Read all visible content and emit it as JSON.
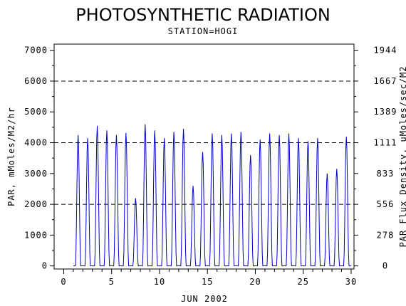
{
  "chart_data": {
    "type": "line",
    "title": "PHOTOSYNTHETIC RADIATION",
    "subtitle": "STATION=HOGI",
    "xlabel": "JUN 2002",
    "ylabel": "PAR, mMoles/M2/hr",
    "y2label": "PAR Flux Density, uMoles/sec/M2",
    "xlim": [
      -1,
      30.3
    ],
    "ylim": [
      -100,
      7200
    ],
    "x_ticks": [
      "0",
      "5",
      "10",
      "15",
      "20",
      "25",
      "30"
    ],
    "y_ticks": [
      "0",
      "1000",
      "2000",
      "3000",
      "4000",
      "5000",
      "6000",
      "7000"
    ],
    "y2_ticks": [
      "0",
      "278",
      "556",
      "833",
      "1111",
      "1389",
      "1667",
      "1944"
    ],
    "grid_y": [
      2000,
      4000,
      6000
    ],
    "line_color": "#0000cc",
    "series": [
      {
        "daily_peaks": [
          {
            "x": 1.5,
            "y": 4250
          },
          {
            "x": 2.5,
            "y": 4150
          },
          {
            "x": 3.5,
            "y": 4550
          },
          {
            "x": 4.5,
            "y": 4400
          },
          {
            "x": 5.5,
            "y": 4250
          },
          {
            "x": 6.5,
            "y": 4320
          },
          {
            "x": 7.5,
            "y": 2200
          },
          {
            "x": 8.5,
            "y": 4600
          },
          {
            "x": 9.5,
            "y": 4400
          },
          {
            "x": 10.5,
            "y": 4150
          },
          {
            "x": 11.5,
            "y": 4350
          },
          {
            "x": 12.5,
            "y": 4450
          },
          {
            "x": 13.5,
            "y": 2600
          },
          {
            "x": 14.5,
            "y": 3700
          },
          {
            "x": 15.5,
            "y": 4300
          },
          {
            "x": 16.5,
            "y": 4250
          },
          {
            "x": 17.5,
            "y": 4300
          },
          {
            "x": 18.5,
            "y": 4350
          },
          {
            "x": 19.5,
            "y": 3600
          },
          {
            "x": 20.5,
            "y": 4100
          },
          {
            "x": 21.5,
            "y": 4300
          },
          {
            "x": 22.5,
            "y": 4250
          },
          {
            "x": 23.5,
            "y": 4300
          },
          {
            "x": 24.5,
            "y": 4150
          },
          {
            "x": 25.5,
            "y": 4050
          },
          {
            "x": 26.5,
            "y": 4150
          },
          {
            "x": 27.5,
            "y": 3000
          },
          {
            "x": 28.5,
            "y": 3150
          },
          {
            "x": 29.5,
            "y": 4200
          }
        ]
      }
    ]
  }
}
